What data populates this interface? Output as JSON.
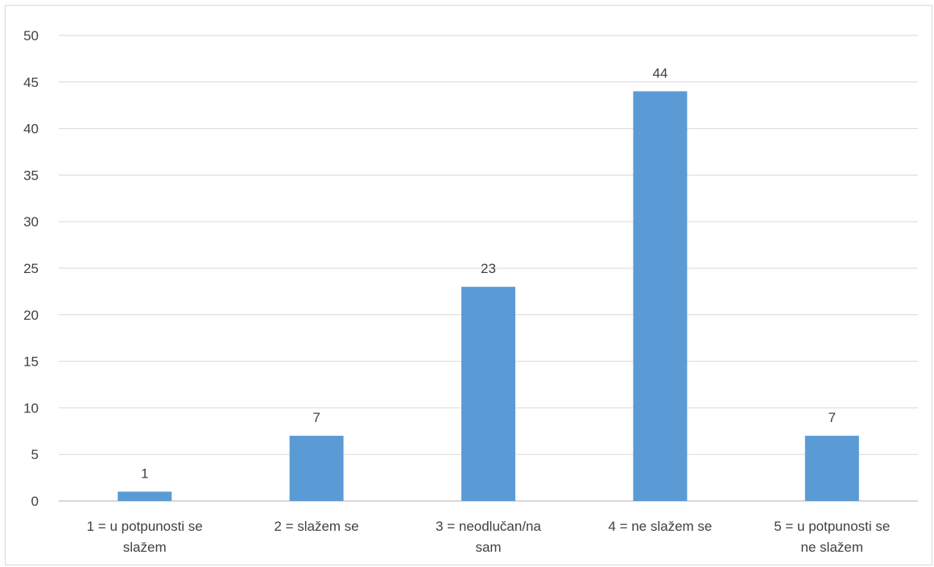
{
  "chart_data": {
    "type": "bar",
    "title": "",
    "xlabel": "",
    "ylabel": "",
    "categories": [
      [
        "1 = u potpunosti se",
        "slažem"
      ],
      [
        "2 = slažem se"
      ],
      [
        "3 = neodlučan/na",
        "sam"
      ],
      [
        "4 = ne slažem se"
      ],
      [
        "5 = u potpunosti se",
        "ne slažem"
      ]
    ],
    "values": [
      1,
      7,
      23,
      44,
      7
    ],
    "data_labels": [
      "1",
      "7",
      "23",
      "44",
      "7"
    ],
    "ylim": [
      0,
      50
    ],
    "yticks": [
      "0",
      "5",
      "10",
      "15",
      "20",
      "25",
      "30",
      "35",
      "40",
      "45",
      "50"
    ],
    "grid": true,
    "legend": "none",
    "colors": {
      "bar": "#5b9bd5",
      "grid": "#d9d9d9",
      "axis": "#bfbfbf",
      "text": "#404040"
    }
  }
}
